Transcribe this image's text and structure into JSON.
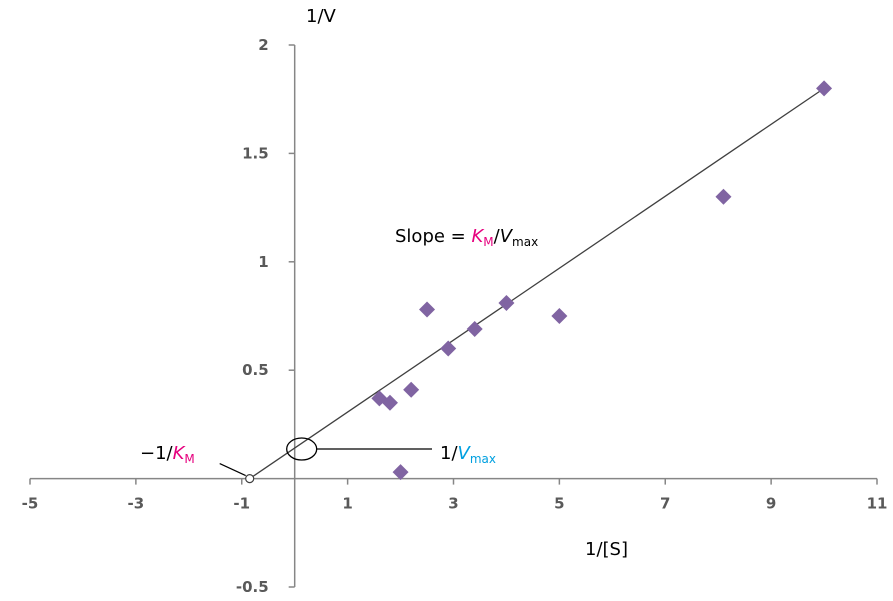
{
  "chart_data": {
    "type": "scatter",
    "title": "",
    "xlabel": "1/[S]",
    "ylabel": "1/V",
    "xlim": [
      -5,
      11
    ],
    "ylim": [
      -0.5,
      2
    ],
    "xticks": [
      "-5",
      "-3",
      "-1",
      "1",
      "3",
      "5",
      "7",
      "9",
      "11"
    ],
    "yticks": [
      "-0.5",
      "0.5",
      "1",
      "1.5",
      "2"
    ],
    "grid": false,
    "legend": "none",
    "marker_color": "#8064A2",
    "series": [
      {
        "x": [
          1.6,
          1.8,
          2.0,
          2.2,
          2.5,
          2.9,
          3.4,
          4.0,
          5.0,
          8.1,
          10.0
        ],
        "y": [
          0.37,
          0.35,
          0.03,
          0.41,
          0.78,
          0.6,
          0.69,
          0.81,
          0.75,
          1.3,
          1.8
        ]
      }
    ],
    "trendline": {
      "x": [
        -0.85,
        10.0
      ],
      "y": [
        0.0,
        1.8
      ]
    },
    "annotations": {
      "slope_prefix": "Slope = ",
      "km": "K",
      "km_sub": "M",
      "slash": "/",
      "vmax": "V",
      "vmax_sub": "max",
      "neg_km_prefix": "−1/",
      "inv_vmax_prefix": "1/",
      "km_color": "#E6007E",
      "vmax_color": "#00A0E0"
    }
  }
}
